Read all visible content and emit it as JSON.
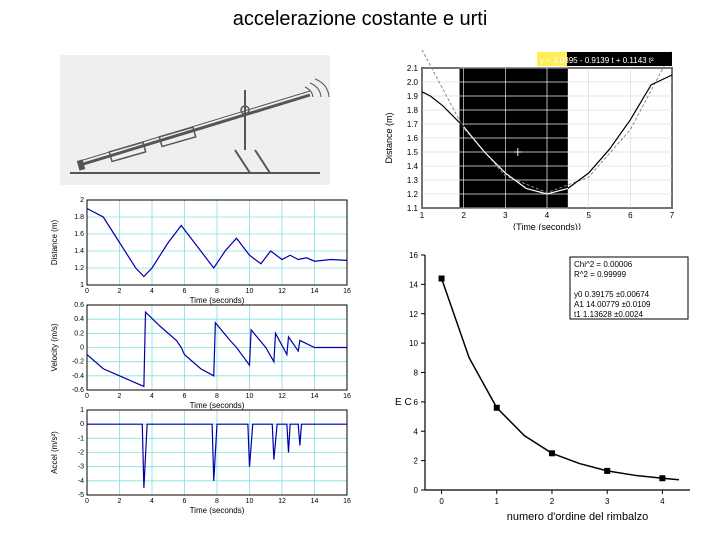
{
  "title": "accelerazione costante e urti",
  "diagram": {
    "bg": "#f0f0f0",
    "line_color": "#555555"
  },
  "distance_fit": {
    "type": "line",
    "equation": "y = 3.0395 - 0.9139 t + 0.1143 t²",
    "eq_bg": "#000000",
    "eq_highlight": "#ffee55",
    "xlabel": "⟨Time (seconds)⟩",
    "ylabel": "Distance (m)",
    "xlim": [
      1,
      7
    ],
    "xtick_step": 1,
    "ylim": [
      1.1,
      2.1
    ],
    "ytick_step": 0.1,
    "grid_color": "#ffffff",
    "selection_bg": "#000000",
    "selection_range": [
      1.9,
      4.5
    ],
    "data_color": "#000000",
    "fit_color": "#888888",
    "data": [
      [
        1,
        1.93
      ],
      [
        1.2,
        1.9
      ],
      [
        1.5,
        1.83
      ],
      [
        2,
        1.68
      ],
      [
        2.5,
        1.5
      ],
      [
        3,
        1.35
      ],
      [
        3.5,
        1.24
      ],
      [
        4,
        1.2
      ],
      [
        4.5,
        1.24
      ],
      [
        5,
        1.35
      ],
      [
        5.5,
        1.52
      ],
      [
        6,
        1.73
      ],
      [
        6.5,
        1.98
      ],
      [
        7,
        2.05
      ]
    ],
    "fit": [
      [
        1,
        2.23
      ],
      [
        2,
        1.67
      ],
      [
        3,
        1.33
      ],
      [
        4,
        1.21
      ],
      [
        5,
        1.32
      ],
      [
        6,
        1.66
      ],
      [
        7,
        2.22
      ]
    ],
    "label_fontsize": 10,
    "tick_fontsize": 8
  },
  "triple": {
    "bg": "#ffffff",
    "grid_color": "#80e0e0",
    "axis_color": "#000000",
    "line_color": "#0000aa",
    "xlabel_a": "Time (seconds)",
    "xlabel_b": "Time (seconds)",
    "xlabel_c": "Time (seconds)",
    "ylabel_a": "Distance (m)",
    "ylabel_b": "Velocity (m/s)",
    "ylabel_c": "Accel (m/s²)",
    "xlim": [
      0,
      16
    ],
    "xtick_step": 2,
    "a_ylim": [
      1.0,
      2.0
    ],
    "a_ystep": 0.2,
    "b_ylim": [
      -0.6,
      0.6
    ],
    "b_ystep": 0.2,
    "c_ylim": [
      -5,
      1
    ],
    "c_ystep": 1,
    "a_data": [
      [
        0,
        1.9
      ],
      [
        1,
        1.8
      ],
      [
        2,
        1.5
      ],
      [
        3,
        1.2
      ],
      [
        3.5,
        1.1
      ],
      [
        4,
        1.2
      ],
      [
        5,
        1.5
      ],
      [
        5.8,
        1.7
      ],
      [
        6,
        1.65
      ],
      [
        7,
        1.4
      ],
      [
        7.8,
        1.2
      ],
      [
        8.5,
        1.4
      ],
      [
        9.2,
        1.55
      ],
      [
        10,
        1.35
      ],
      [
        10.7,
        1.25
      ],
      [
        11.3,
        1.4
      ],
      [
        12,
        1.3
      ],
      [
        12.5,
        1.35
      ],
      [
        13,
        1.3
      ],
      [
        13.5,
        1.32
      ],
      [
        14,
        1.28
      ],
      [
        15,
        1.3
      ],
      [
        16,
        1.29
      ]
    ],
    "b_data": [
      [
        0,
        -0.1
      ],
      [
        1,
        -0.3
      ],
      [
        2,
        -0.4
      ],
      [
        3,
        -0.5
      ],
      [
        3.5,
        -0.55
      ],
      [
        3.6,
        0.5
      ],
      [
        4.5,
        0.3
      ],
      [
        5.5,
        0.1
      ],
      [
        5.8,
        0.0
      ],
      [
        6,
        -0.1
      ],
      [
        7,
        -0.3
      ],
      [
        7.8,
        -0.4
      ],
      [
        7.9,
        0.35
      ],
      [
        8.8,
        0.1
      ],
      [
        9.2,
        0.0
      ],
      [
        10,
        -0.25
      ],
      [
        10.1,
        0.25
      ],
      [
        11,
        0.0
      ],
      [
        11.5,
        -0.2
      ],
      [
        11.6,
        0.2
      ],
      [
        12.3,
        -0.1
      ],
      [
        12.4,
        0.15
      ],
      [
        13,
        -0.05
      ],
      [
        13.1,
        0.1
      ],
      [
        14,
        0.0
      ],
      [
        15,
        0.0
      ],
      [
        16,
        0.0
      ]
    ],
    "c_data": [
      [
        0,
        0
      ],
      [
        3.4,
        0
      ],
      [
        3.5,
        -4.5
      ],
      [
        3.7,
        0
      ],
      [
        7.7,
        0
      ],
      [
        7.8,
        -4
      ],
      [
        8,
        0
      ],
      [
        9.9,
        0
      ],
      [
        10,
        -3
      ],
      [
        10.2,
        0
      ],
      [
        11.4,
        0
      ],
      [
        11.5,
        -2.5
      ],
      [
        11.7,
        0
      ],
      [
        12.3,
        0
      ],
      [
        12.4,
        -2
      ],
      [
        12.5,
        0
      ],
      [
        13,
        0
      ],
      [
        13.1,
        -1.5
      ],
      [
        13.2,
        0
      ],
      [
        16,
        0
      ]
    ],
    "tick_fontsize": 7,
    "label_fontsize": 8
  },
  "decay": {
    "type": "scatter+line",
    "xlabel": "numero d'ordine del rimbalzo",
    "ylabel": "",
    "xlim": [
      -0.3,
      4.5
    ],
    "xticks": [
      0,
      1,
      2,
      3,
      4
    ],
    "ylim": [
      0,
      16
    ],
    "ytick_step": 2,
    "fit_box": {
      "lines": [
        "Chi^2  =  0.00006",
        "R^2    =  0.99999",
        "",
        "y0   0.39175   ±0.00674",
        "A1   14.00779  ±0.0109",
        "t1   1.13628   ±0.0024"
      ],
      "border": "#000000",
      "bg": "#ffffff",
      "fontsize": 8
    },
    "EC_label": "E C",
    "points": [
      [
        0,
        14.4
      ],
      [
        1,
        5.6
      ],
      [
        2,
        2.5
      ],
      [
        3,
        1.3
      ],
      [
        4,
        0.8
      ]
    ],
    "curve": [
      [
        0,
        14.4
      ],
      [
        0.5,
        9.0
      ],
      [
        1,
        5.6
      ],
      [
        1.5,
        3.7
      ],
      [
        2,
        2.5
      ],
      [
        2.5,
        1.8
      ],
      [
        3,
        1.3
      ],
      [
        3.5,
        1.0
      ],
      [
        4,
        0.8
      ],
      [
        4.3,
        0.7
      ]
    ],
    "marker_color": "#000000",
    "line_color": "#000000",
    "axis_color": "#000000",
    "tick_fontsize": 9,
    "label_fontsize": 11
  }
}
